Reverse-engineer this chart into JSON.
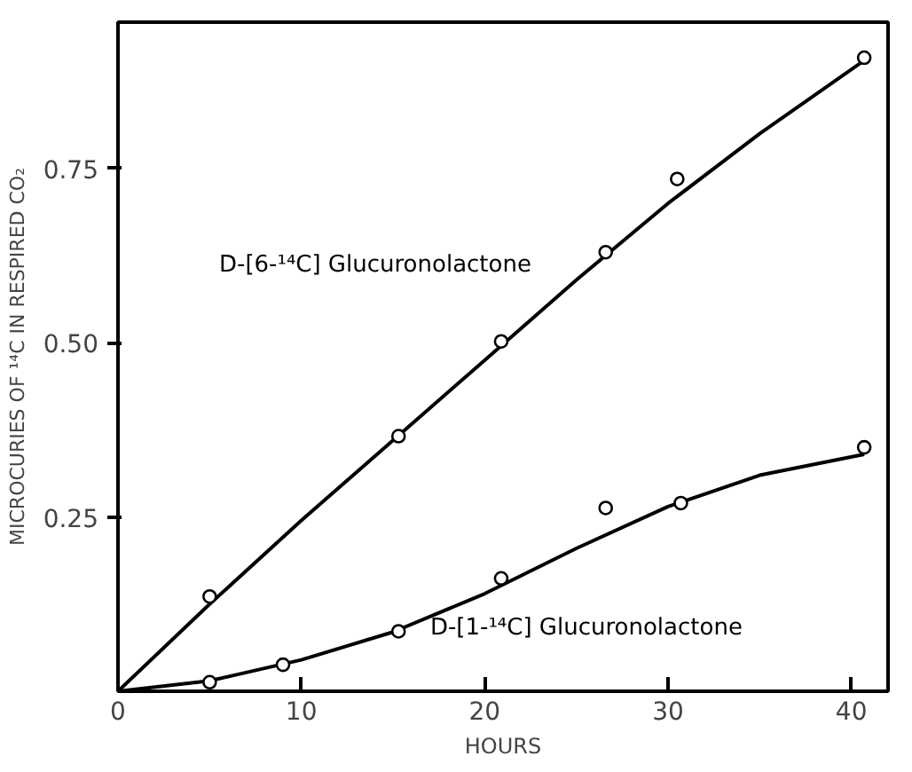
{
  "chart_data": {
    "type": "scatter",
    "xlabel": "HOURS",
    "ylabel": "MICROCURIES OF ¹⁴C IN RESPIRED CO₂",
    "xlim": [
      0,
      42
    ],
    "ylim": [
      0,
      0.96
    ],
    "xticks": [
      0,
      10,
      20,
      30,
      40
    ],
    "yticks": [
      {
        "value": 0.25,
        "label": "0.25"
      },
      {
        "value": 0.5,
        "label": "0.50"
      },
      {
        "value": 0.75,
        "label": "0.75"
      }
    ],
    "grid": false,
    "legend": false,
    "marker": "circle",
    "series": [
      {
        "name": "D-[6-¹⁴C] Glucuronolactone",
        "color": "#000000",
        "x": [
          5.0,
          15.3,
          20.9,
          26.6,
          30.5,
          40.7
        ],
        "values": [
          0.136,
          0.366,
          0.502,
          0.63,
          0.735,
          0.909
        ]
      },
      {
        "name": "D-[1-¹⁴C] Glucuronolactone",
        "color": "#000000",
        "x": [
          5.0,
          9.0,
          15.3,
          20.9,
          26.6,
          30.7,
          40.7
        ],
        "values": [
          0.013,
          0.038,
          0.086,
          0.162,
          0.263,
          0.27,
          0.35
        ]
      },
      {
        "type": "line",
        "marker": "none",
        "color": "#000000",
        "line_style": "solid",
        "x": [
          0,
          5,
          10,
          15,
          20,
          25,
          30,
          35,
          40.7
        ],
        "values": [
          0,
          0.125,
          0.245,
          0.36,
          0.475,
          0.59,
          0.7,
          0.8,
          0.905
        ]
      },
      {
        "type": "line",
        "marker": "none",
        "color": "#000000",
        "line_style": "solid",
        "x": [
          0,
          5,
          10,
          15,
          20,
          25,
          30,
          35,
          40.7
        ],
        "values": [
          0,
          0.015,
          0.045,
          0.085,
          0.14,
          0.205,
          0.265,
          0.31,
          0.34
        ]
      }
    ]
  }
}
